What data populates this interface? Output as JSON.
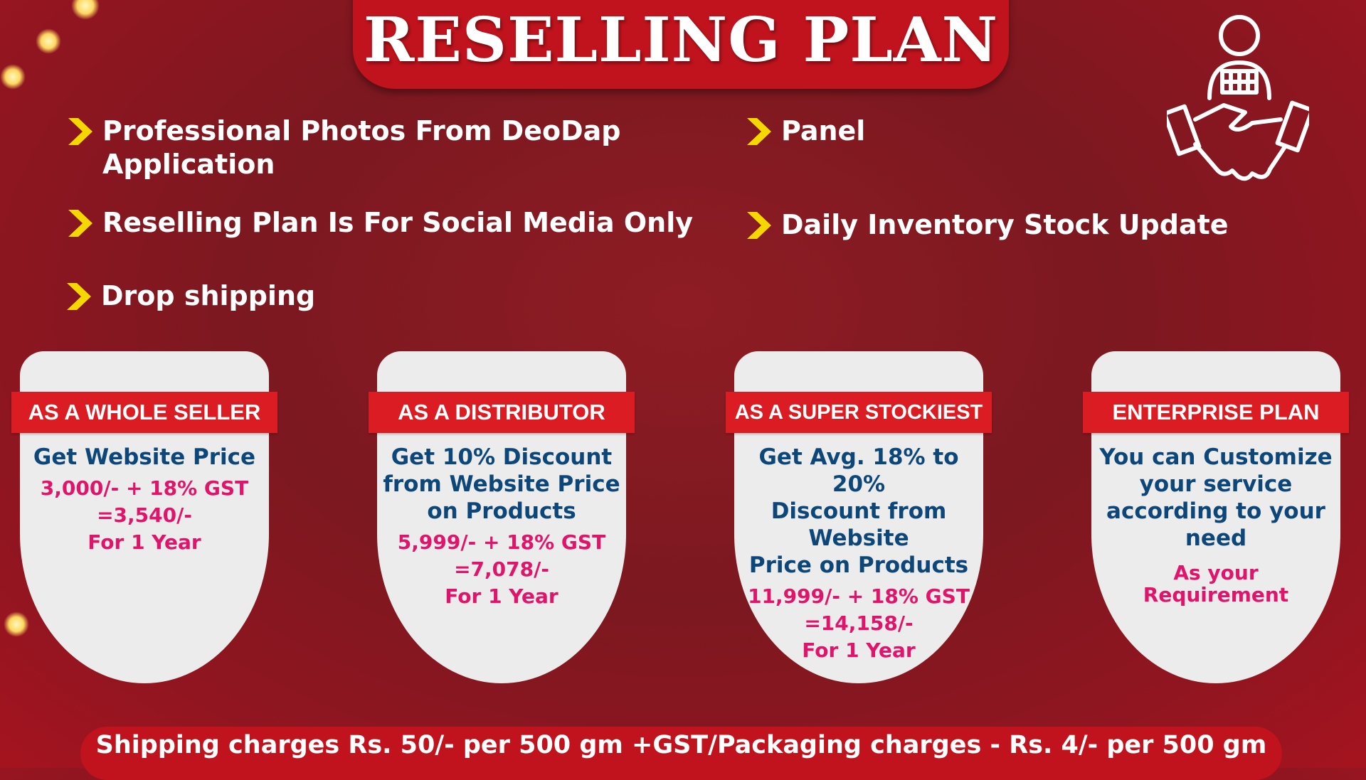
{
  "title": "RESELLING PLAN",
  "features": [
    {
      "icon": "chevron-right-icon",
      "text_line1": "Professional Photos From DeoDap",
      "text_line2": "Application"
    },
    {
      "icon": "chevron-right-icon",
      "text": "Panel"
    },
    {
      "icon": "chevron-right-icon",
      "text": "Reselling Plan Is For Social Media Only"
    },
    {
      "icon": "chevron-right-icon",
      "text": "Daily Inventory Stock Update"
    },
    {
      "icon": "chevron-right-icon",
      "text": "Drop shipping"
    }
  ],
  "plans": [
    {
      "name": "AS A WHOLE SELLER",
      "desc": [
        "Get Website Price"
      ],
      "price": [
        "3,000/- + 18% GST",
        "=3,540/-",
        "For 1 Year"
      ]
    },
    {
      "name": "AS A DISTRIBUTOR",
      "desc": [
        "Get 10% Discount",
        "from Website Price",
        "on Products"
      ],
      "price": [
        "5,999/- + 18% GST",
        "=7,078/-",
        "For 1 Year"
      ]
    },
    {
      "name": "AS A SUPER STOCKIEST",
      "desc": [
        "Get Avg. 18% to 20%",
        "Discount from",
        "Website",
        "Price on Products"
      ],
      "price": [
        "11,999/- + 18% GST",
        "=14,158/-",
        "For 1 Year"
      ]
    },
    {
      "name": "ENTERPRISE PLAN",
      "desc": [
        "You can Customize",
        "your service",
        "according to your",
        "need"
      ],
      "price": [
        "As your",
        "Requirement"
      ]
    }
  ],
  "footer": "Shipping charges Rs. 50/- per 500 gm +GST/Packaging charges - Rs. 4/- per 500 gm",
  "colors": {
    "background": "#8e1c24",
    "accent_red": "#c0131d",
    "band_red": "#db1c22",
    "blue_text": "#0d4679",
    "pink_text": "#e0146a",
    "chevron": "#f5d800"
  }
}
